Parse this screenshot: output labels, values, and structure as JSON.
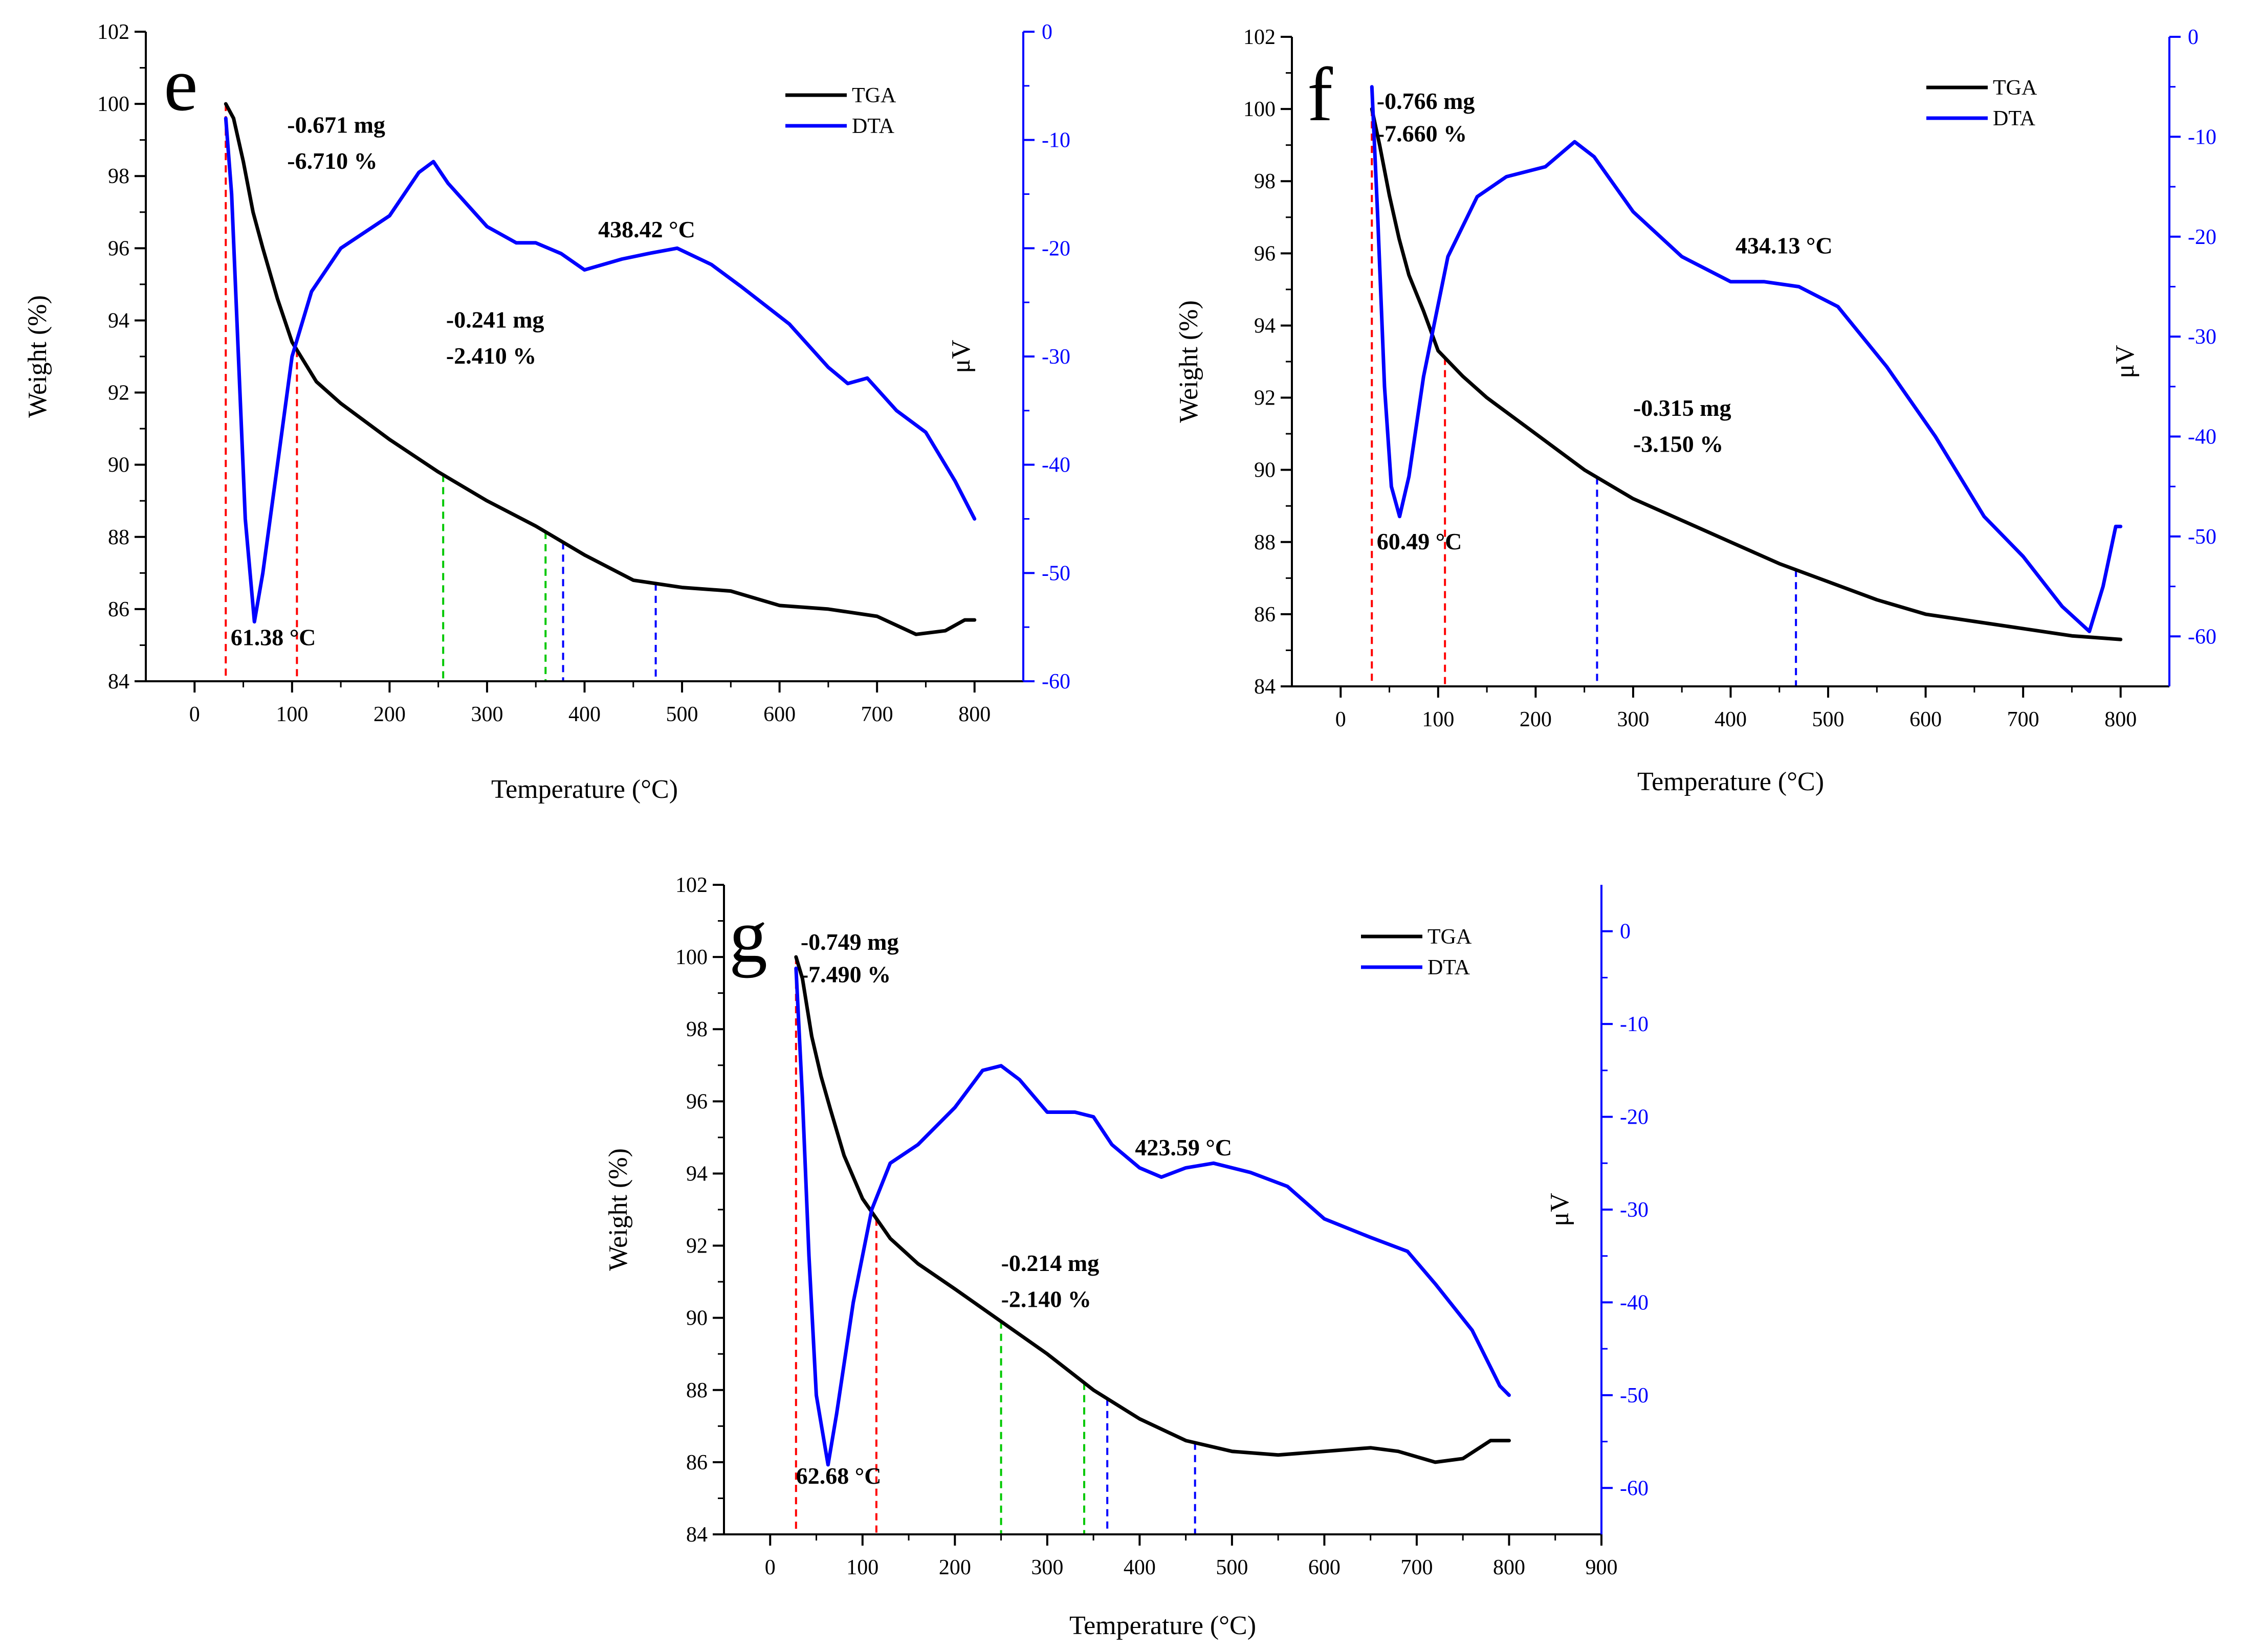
{
  "colors": {
    "tga": "#000000",
    "dta": "#0000ff",
    "ref_red": "#ff0000",
    "ref_green": "#00c800",
    "ref_blue": "#0000ff",
    "right_axis": "#0000ff"
  },
  "chart_data": [
    {
      "type": "line",
      "panel": "e",
      "xlabel": "Temperature (°C)",
      "ylabel": "Weight (%)",
      "y2label": "μV",
      "xlim": [
        -50,
        850
      ],
      "xticks": [
        0,
        100,
        200,
        300,
        400,
        500,
        600,
        700,
        800
      ],
      "ylim": [
        84,
        102
      ],
      "yticks": [
        84,
        86,
        88,
        90,
        92,
        94,
        96,
        98,
        100,
        102
      ],
      "y2lim": [
        -60,
        0
      ],
      "y2ticks": [
        0,
        -10,
        -20,
        -30,
        -40,
        -50,
        -60
      ],
      "legend": [
        "TGA",
        "DTA"
      ],
      "legend_position": "top-right",
      "series": [
        {
          "name": "TGA",
          "axis": "left",
          "color_key": "tga",
          "x": [
            32,
            40,
            50,
            60,
            70,
            85,
            100,
            125,
            150,
            200,
            250,
            300,
            350,
            400,
            450,
            500,
            550,
            600,
            650,
            700,
            740,
            770,
            790,
            800
          ],
          "y": [
            100,
            99.6,
            98.4,
            97.0,
            96.0,
            94.6,
            93.4,
            92.3,
            91.7,
            90.7,
            89.8,
            89.0,
            88.3,
            87.5,
            86.8,
            86.6,
            86.5,
            86.1,
            86.0,
            85.8,
            85.3,
            85.4,
            85.7,
            85.7
          ]
        },
        {
          "name": "DTA",
          "axis": "right",
          "color_key": "dta",
          "x": [
            32,
            38,
            45,
            52,
            61.38,
            70,
            85,
            100,
            120,
            150,
            200,
            230,
            245,
            260,
            300,
            330,
            350,
            376,
            400,
            438.42,
            465,
            495,
            530,
            560,
            610,
            650,
            670,
            690,
            720,
            750,
            780,
            800
          ],
          "y": [
            -8,
            -15,
            -30,
            -45,
            -54.5,
            -50,
            -40,
            -30,
            -24,
            -20,
            -17,
            -13,
            -12,
            -14,
            -18,
            -19.5,
            -19.5,
            -20.5,
            -22,
            -21,
            -20.5,
            -20,
            -21.5,
            -23.5,
            -27,
            -31,
            -32.5,
            -32,
            -35,
            -37,
            -41.5,
            -45
          ]
        }
      ],
      "ref_lines": [
        {
          "x": 32,
          "color_key": "ref_red"
        },
        {
          "x": 105,
          "color_key": "ref_red"
        },
        {
          "x": 255,
          "color_key": "ref_green"
        },
        {
          "x": 360,
          "color_key": "ref_green"
        },
        {
          "x": 378,
          "color_key": "ref_blue"
        },
        {
          "x": 473,
          "color_key": "ref_blue"
        }
      ],
      "annotations": [
        {
          "text": "-0.671 mg",
          "x": 95,
          "y": 99.2
        },
        {
          "text": "-6.710 %",
          "x": 95,
          "y": 98.2
        },
        {
          "text": "-0.241 mg",
          "x": 258,
          "y": 93.8
        },
        {
          "text": "-2.410 %",
          "x": 258,
          "y": 92.8
        },
        {
          "text": "438.42 °C",
          "x": 414,
          "y": 96.3
        },
        {
          "text": "61.38 °C",
          "x": 37,
          "y": 85.0
        }
      ]
    },
    {
      "type": "line",
      "panel": "f",
      "xlabel": "Temperature (°C)",
      "ylabel": "Weight (%)",
      "y2label": "μV",
      "xlim": [
        -50,
        850
      ],
      "xticks": [
        0,
        100,
        200,
        300,
        400,
        500,
        600,
        700,
        800
      ],
      "ylim": [
        84,
        102
      ],
      "yticks": [
        84,
        86,
        88,
        90,
        92,
        94,
        96,
        98,
        100,
        102
      ],
      "y2lim": [
        -65,
        0
      ],
      "y2ticks": [
        0,
        -10,
        -20,
        -30,
        -40,
        -50,
        -60
      ],
      "legend": [
        "TGA",
        "DTA"
      ],
      "legend_position": "top-right",
      "series": [
        {
          "name": "TGA",
          "axis": "left",
          "color_key": "tga",
          "x": [
            32,
            40,
            50,
            60,
            70,
            85,
            100,
            125,
            150,
            200,
            250,
            300,
            350,
            400,
            450,
            500,
            550,
            600,
            650,
            700,
            750,
            800
          ],
          "y": [
            100,
            99.0,
            97.6,
            96.4,
            95.4,
            94.4,
            93.3,
            92.6,
            92.0,
            91.0,
            90.0,
            89.2,
            88.6,
            88.0,
            87.4,
            86.9,
            86.4,
            86.0,
            85.8,
            85.6,
            85.4,
            85.3
          ]
        },
        {
          "name": "DTA",
          "axis": "right",
          "color_key": "dta",
          "x": [
            32,
            38,
            45,
            52,
            60.49,
            70,
            85,
            110,
            140,
            170,
            210,
            240,
            260,
            300,
            350,
            400,
            434.13,
            470,
            510,
            560,
            610,
            660,
            700,
            740,
            768,
            782,
            795,
            800
          ],
          "y": [
            -5,
            -18,
            -35,
            -45,
            -48,
            -44,
            -34,
            -22,
            -16,
            -14,
            -13,
            -10.5,
            -12,
            -17.5,
            -22,
            -24.5,
            -24.5,
            -25,
            -27,
            -33,
            -40,
            -48,
            -52,
            -57,
            -59.5,
            -55,
            -49,
            -49
          ]
        }
      ],
      "ref_lines": [
        {
          "x": 32,
          "color_key": "ref_red"
        },
        {
          "x": 107,
          "color_key": "ref_red"
        },
        {
          "x": 263,
          "color_key": "ref_blue"
        },
        {
          "x": 467,
          "color_key": "ref_blue"
        }
      ],
      "annotations": [
        {
          "text": "-0.766 mg",
          "x": 37,
          "y": 100.0
        },
        {
          "text": "-7.660 %",
          "x": 37,
          "y": 99.1
        },
        {
          "text": "434.13 °C",
          "x": 405,
          "y": 96.0
        },
        {
          "text": "-0.315 mg",
          "x": 300,
          "y": 91.5
        },
        {
          "text": "-3.150 %",
          "x": 300,
          "y": 90.5
        },
        {
          "text": "60.49 °C",
          "x": 37,
          "y": 87.8
        }
      ]
    },
    {
      "type": "line",
      "panel": "g",
      "xlabel": "Temperature (°C)",
      "ylabel": "Weight (%)",
      "y2label": "μV",
      "xlim": [
        -50,
        900
      ],
      "xticks": [
        0,
        100,
        200,
        300,
        400,
        500,
        600,
        700,
        800,
        900
      ],
      "ylim": [
        84,
        102
      ],
      "yticks": [
        84,
        86,
        88,
        90,
        92,
        94,
        96,
        98,
        100,
        102
      ],
      "y2lim": [
        -65,
        5
      ],
      "y2ticks": [
        0,
        -10,
        -20,
        -30,
        -40,
        -50,
        -60
      ],
      "legend": [
        "TGA",
        "DTA"
      ],
      "legend_position": "top-right",
      "series": [
        {
          "name": "TGA",
          "axis": "left",
          "color_key": "tga",
          "x": [
            28,
            35,
            45,
            55,
            65,
            80,
            100,
            130,
            160,
            200,
            250,
            300,
            350,
            400,
            450,
            500,
            550,
            600,
            650,
            680,
            720,
            750,
            780,
            800
          ],
          "y": [
            100,
            99.4,
            97.8,
            96.7,
            95.8,
            94.5,
            93.3,
            92.2,
            91.5,
            90.8,
            89.9,
            89.0,
            88.0,
            87.2,
            86.6,
            86.3,
            86.2,
            86.3,
            86.4,
            86.3,
            86.0,
            86.1,
            86.6,
            86.6
          ]
        },
        {
          "name": "DTA",
          "axis": "right",
          "color_key": "dta",
          "x": [
            28,
            35,
            42,
            50,
            62.68,
            72,
            90,
            110,
            130,
            160,
            200,
            230,
            250,
            270,
            300,
            330,
            350,
            370,
            400,
            423.59,
            450,
            480,
            520,
            560,
            600,
            650,
            690,
            720,
            760,
            790,
            800
          ],
          "y": [
            -4,
            -18,
            -35,
            -50,
            -57.5,
            -52,
            -40,
            -30,
            -25,
            -23,
            -19,
            -15,
            -14.5,
            -16,
            -19.5,
            -19.5,
            -20,
            -23,
            -25.5,
            -26.5,
            -25.5,
            -25,
            -26,
            -27.5,
            -31,
            -33,
            -34.5,
            -38,
            -43,
            -49,
            -50
          ]
        }
      ],
      "ref_lines": [
        {
          "x": 28,
          "color_key": "ref_red"
        },
        {
          "x": 115,
          "color_key": "ref_red"
        },
        {
          "x": 250,
          "color_key": "ref_green"
        },
        {
          "x": 340,
          "color_key": "ref_green"
        },
        {
          "x": 365,
          "color_key": "ref_blue"
        },
        {
          "x": 460,
          "color_key": "ref_blue"
        }
      ],
      "annotations": [
        {
          "text": "-0.749 mg",
          "x": 33,
          "y": 100.2
        },
        {
          "text": "-7.490 %",
          "x": 33,
          "y": 99.3
        },
        {
          "text": "-0.214 mg",
          "x": 250,
          "y": 91.3
        },
        {
          "text": "-2.140 %",
          "x": 250,
          "y": 90.3
        },
        {
          "text": "423.59 °C",
          "x": 395,
          "y": 94.5
        },
        {
          "text": "62.68 °C",
          "x": 28,
          "y": 85.4
        }
      ]
    }
  ]
}
